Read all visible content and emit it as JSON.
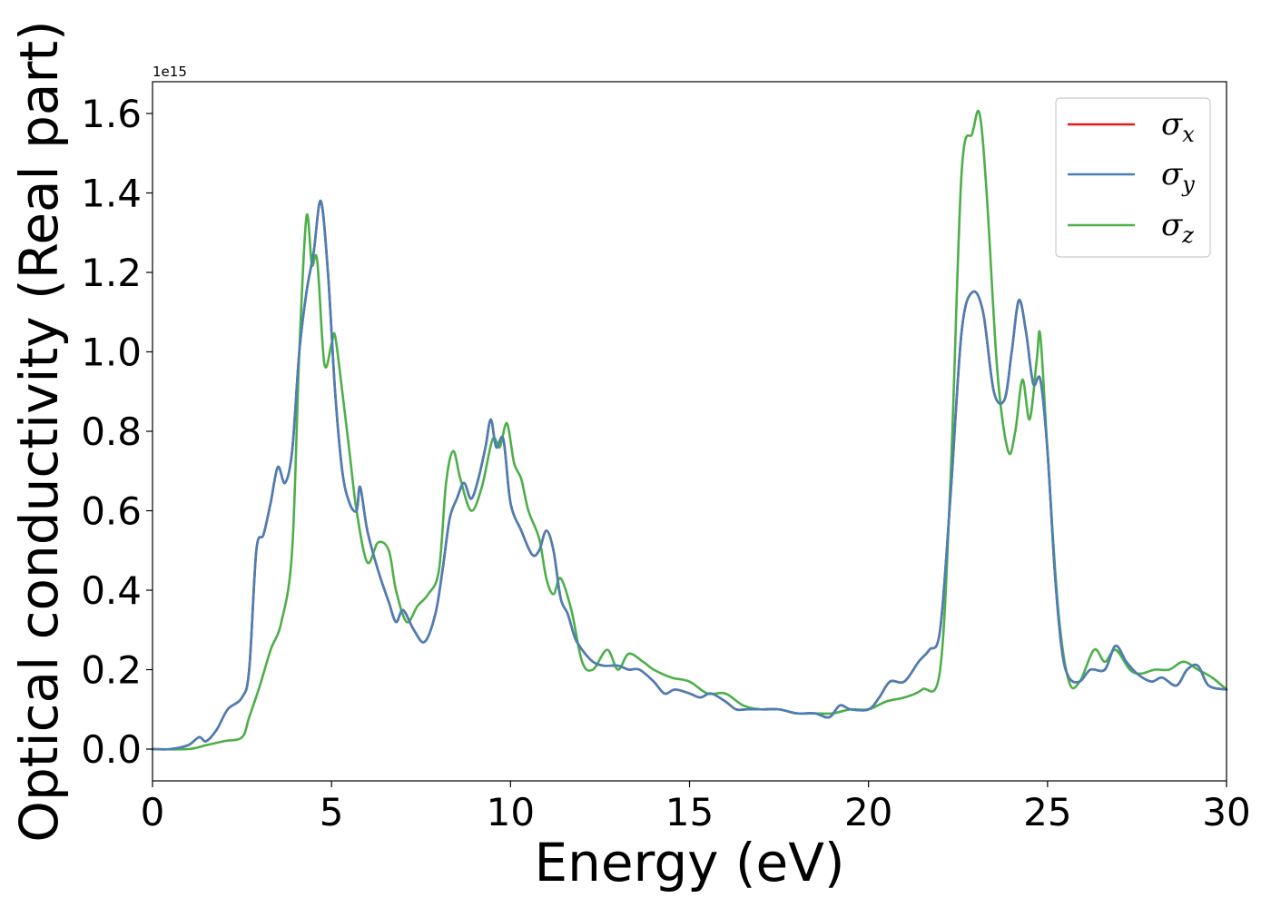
{
  "chart_data": {
    "type": "line",
    "title": "",
    "xlabel": "Energy (eV)",
    "ylabel": "Optical conductivity (Real part)",
    "y_offset_label": "1e15",
    "xlim": [
      0,
      30
    ],
    "ylim": [
      -0.08,
      1.68
    ],
    "x_ticks": [
      0,
      5,
      10,
      15,
      20,
      25,
      30
    ],
    "y_ticks": [
      0.0,
      0.2,
      0.4,
      0.6,
      0.8,
      1.0,
      1.2,
      1.4,
      1.6
    ],
    "x_tick_labels": [
      "0",
      "5",
      "10",
      "15",
      "20",
      "25",
      "30"
    ],
    "y_tick_labels": [
      "0.0",
      "0.2",
      "0.4",
      "0.6",
      "0.8",
      "1.0",
      "1.2",
      "1.4",
      "1.6"
    ],
    "grid": false,
    "legend_position": "top-right",
    "series": [
      {
        "name": "σx",
        "symbol": "σ",
        "subscript": "x",
        "color": "#e41a1c",
        "points": [
          [
            0,
            0
          ],
          [
            0.5,
            0.0
          ],
          [
            1.0,
            0.01
          ],
          [
            1.3,
            0.03
          ],
          [
            1.5,
            0.02
          ],
          [
            1.8,
            0.05
          ],
          [
            2.1,
            0.1
          ],
          [
            2.5,
            0.13
          ],
          [
            2.7,
            0.2
          ],
          [
            2.9,
            0.5
          ],
          [
            3.1,
            0.54
          ],
          [
            3.3,
            0.62
          ],
          [
            3.5,
            0.71
          ],
          [
            3.7,
            0.67
          ],
          [
            3.9,
            0.75
          ],
          [
            4.1,
            1.0
          ],
          [
            4.3,
            1.15
          ],
          [
            4.5,
            1.25
          ],
          [
            4.7,
            1.38
          ],
          [
            4.9,
            1.2
          ],
          [
            5.1,
            0.9
          ],
          [
            5.3,
            0.7
          ],
          [
            5.5,
            0.62
          ],
          [
            5.7,
            0.6
          ],
          [
            5.8,
            0.66
          ],
          [
            6.0,
            0.55
          ],
          [
            6.3,
            0.45
          ],
          [
            6.6,
            0.37
          ],
          [
            6.8,
            0.32
          ],
          [
            7.0,
            0.35
          ],
          [
            7.3,
            0.3
          ],
          [
            7.6,
            0.27
          ],
          [
            7.9,
            0.34
          ],
          [
            8.1,
            0.45
          ],
          [
            8.3,
            0.58
          ],
          [
            8.5,
            0.63
          ],
          [
            8.7,
            0.67
          ],
          [
            8.9,
            0.63
          ],
          [
            9.1,
            0.68
          ],
          [
            9.3,
            0.76
          ],
          [
            9.45,
            0.83
          ],
          [
            9.6,
            0.76
          ],
          [
            9.8,
            0.78
          ],
          [
            10.0,
            0.62
          ],
          [
            10.3,
            0.55
          ],
          [
            10.6,
            0.49
          ],
          [
            10.8,
            0.5
          ],
          [
            11.0,
            0.55
          ],
          [
            11.2,
            0.5
          ],
          [
            11.4,
            0.38
          ],
          [
            11.6,
            0.34
          ],
          [
            11.8,
            0.28
          ],
          [
            12.0,
            0.25
          ],
          [
            12.3,
            0.22
          ],
          [
            12.6,
            0.21
          ],
          [
            13.0,
            0.21
          ],
          [
            13.3,
            0.2
          ],
          [
            13.6,
            0.2
          ],
          [
            14.0,
            0.17
          ],
          [
            14.3,
            0.14
          ],
          [
            14.6,
            0.15
          ],
          [
            15.0,
            0.14
          ],
          [
            15.3,
            0.13
          ],
          [
            15.6,
            0.14
          ],
          [
            16.0,
            0.12
          ],
          [
            16.3,
            0.1
          ],
          [
            16.6,
            0.1
          ],
          [
            17.0,
            0.1
          ],
          [
            17.5,
            0.1
          ],
          [
            18.0,
            0.09
          ],
          [
            18.5,
            0.09
          ],
          [
            18.9,
            0.08
          ],
          [
            19.2,
            0.11
          ],
          [
            19.5,
            0.1
          ],
          [
            20.0,
            0.1
          ],
          [
            20.3,
            0.13
          ],
          [
            20.6,
            0.17
          ],
          [
            21.0,
            0.17
          ],
          [
            21.4,
            0.22
          ],
          [
            21.7,
            0.25
          ],
          [
            22.0,
            0.3
          ],
          [
            22.3,
            0.65
          ],
          [
            22.6,
            1.05
          ],
          [
            22.9,
            1.15
          ],
          [
            23.2,
            1.1
          ],
          [
            23.5,
            0.9
          ],
          [
            23.8,
            0.88
          ],
          [
            24.0,
            1.0
          ],
          [
            24.2,
            1.13
          ],
          [
            24.4,
            1.05
          ],
          [
            24.6,
            0.92
          ],
          [
            24.8,
            0.93
          ],
          [
            25.0,
            0.75
          ],
          [
            25.2,
            0.45
          ],
          [
            25.4,
            0.25
          ],
          [
            25.6,
            0.18
          ],
          [
            25.9,
            0.17
          ],
          [
            26.2,
            0.2
          ],
          [
            26.6,
            0.2
          ],
          [
            26.9,
            0.26
          ],
          [
            27.2,
            0.22
          ],
          [
            27.5,
            0.19
          ],
          [
            27.9,
            0.17
          ],
          [
            28.2,
            0.18
          ],
          [
            28.6,
            0.16
          ],
          [
            28.9,
            0.2
          ],
          [
            29.2,
            0.21
          ],
          [
            29.5,
            0.16
          ],
          [
            30.0,
            0.15
          ]
        ]
      },
      {
        "name": "σy",
        "symbol": "σ",
        "subscript": "y",
        "color": "#4a7fb5",
        "points": [
          [
            0,
            0
          ],
          [
            0.5,
            0.0
          ],
          [
            1.0,
            0.01
          ],
          [
            1.3,
            0.03
          ],
          [
            1.5,
            0.02
          ],
          [
            1.8,
            0.05
          ],
          [
            2.1,
            0.1
          ],
          [
            2.5,
            0.13
          ],
          [
            2.7,
            0.2
          ],
          [
            2.9,
            0.5
          ],
          [
            3.1,
            0.54
          ],
          [
            3.3,
            0.62
          ],
          [
            3.5,
            0.71
          ],
          [
            3.7,
            0.67
          ],
          [
            3.9,
            0.75
          ],
          [
            4.1,
            1.0
          ],
          [
            4.3,
            1.15
          ],
          [
            4.5,
            1.25
          ],
          [
            4.7,
            1.38
          ],
          [
            4.9,
            1.2
          ],
          [
            5.1,
            0.9
          ],
          [
            5.3,
            0.7
          ],
          [
            5.5,
            0.62
          ],
          [
            5.7,
            0.6
          ],
          [
            5.8,
            0.66
          ],
          [
            6.0,
            0.55
          ],
          [
            6.3,
            0.45
          ],
          [
            6.6,
            0.37
          ],
          [
            6.8,
            0.32
          ],
          [
            7.0,
            0.35
          ],
          [
            7.3,
            0.3
          ],
          [
            7.6,
            0.27
          ],
          [
            7.9,
            0.34
          ],
          [
            8.1,
            0.45
          ],
          [
            8.3,
            0.58
          ],
          [
            8.5,
            0.63
          ],
          [
            8.7,
            0.67
          ],
          [
            8.9,
            0.63
          ],
          [
            9.1,
            0.68
          ],
          [
            9.3,
            0.76
          ],
          [
            9.45,
            0.83
          ],
          [
            9.6,
            0.76
          ],
          [
            9.8,
            0.78
          ],
          [
            10.0,
            0.62
          ],
          [
            10.3,
            0.55
          ],
          [
            10.6,
            0.49
          ],
          [
            10.8,
            0.5
          ],
          [
            11.0,
            0.55
          ],
          [
            11.2,
            0.5
          ],
          [
            11.4,
            0.38
          ],
          [
            11.6,
            0.34
          ],
          [
            11.8,
            0.28
          ],
          [
            12.0,
            0.25
          ],
          [
            12.3,
            0.22
          ],
          [
            12.6,
            0.21
          ],
          [
            13.0,
            0.21
          ],
          [
            13.3,
            0.2
          ],
          [
            13.6,
            0.2
          ],
          [
            14.0,
            0.17
          ],
          [
            14.3,
            0.14
          ],
          [
            14.6,
            0.15
          ],
          [
            15.0,
            0.14
          ],
          [
            15.3,
            0.13
          ],
          [
            15.6,
            0.14
          ],
          [
            16.0,
            0.12
          ],
          [
            16.3,
            0.1
          ],
          [
            16.6,
            0.1
          ],
          [
            17.0,
            0.1
          ],
          [
            17.5,
            0.1
          ],
          [
            18.0,
            0.09
          ],
          [
            18.5,
            0.09
          ],
          [
            18.9,
            0.08
          ],
          [
            19.2,
            0.11
          ],
          [
            19.5,
            0.1
          ],
          [
            20.0,
            0.1
          ],
          [
            20.3,
            0.13
          ],
          [
            20.6,
            0.17
          ],
          [
            21.0,
            0.17
          ],
          [
            21.4,
            0.22
          ],
          [
            21.7,
            0.25
          ],
          [
            22.0,
            0.3
          ],
          [
            22.3,
            0.65
          ],
          [
            22.6,
            1.05
          ],
          [
            22.9,
            1.15
          ],
          [
            23.2,
            1.1
          ],
          [
            23.5,
            0.9
          ],
          [
            23.8,
            0.88
          ],
          [
            24.0,
            1.0
          ],
          [
            24.2,
            1.13
          ],
          [
            24.4,
            1.05
          ],
          [
            24.6,
            0.92
          ],
          [
            24.8,
            0.93
          ],
          [
            25.0,
            0.75
          ],
          [
            25.2,
            0.45
          ],
          [
            25.4,
            0.25
          ],
          [
            25.6,
            0.18
          ],
          [
            25.9,
            0.17
          ],
          [
            26.2,
            0.2
          ],
          [
            26.6,
            0.2
          ],
          [
            26.9,
            0.26
          ],
          [
            27.2,
            0.22
          ],
          [
            27.5,
            0.19
          ],
          [
            27.9,
            0.17
          ],
          [
            28.2,
            0.18
          ],
          [
            28.6,
            0.16
          ],
          [
            28.9,
            0.2
          ],
          [
            29.2,
            0.21
          ],
          [
            29.5,
            0.16
          ],
          [
            30.0,
            0.15
          ]
        ]
      },
      {
        "name": "σz",
        "symbol": "σ",
        "subscript": "z",
        "color": "#4daf4a",
        "points": [
          [
            0,
            0
          ],
          [
            1.0,
            0.0
          ],
          [
            1.5,
            0.01
          ],
          [
            2.0,
            0.02
          ],
          [
            2.5,
            0.03
          ],
          [
            2.7,
            0.08
          ],
          [
            3.0,
            0.16
          ],
          [
            3.3,
            0.25
          ],
          [
            3.6,
            0.32
          ],
          [
            3.9,
            0.5
          ],
          [
            4.1,
            1.0
          ],
          [
            4.3,
            1.34
          ],
          [
            4.45,
            1.22
          ],
          [
            4.6,
            1.23
          ],
          [
            4.8,
            0.97
          ],
          [
            5.0,
            1.02
          ],
          [
            5.1,
            1.04
          ],
          [
            5.3,
            0.9
          ],
          [
            5.5,
            0.75
          ],
          [
            5.7,
            0.6
          ],
          [
            6.0,
            0.47
          ],
          [
            6.3,
            0.52
          ],
          [
            6.6,
            0.5
          ],
          [
            6.8,
            0.4
          ],
          [
            7.1,
            0.32
          ],
          [
            7.4,
            0.36
          ],
          [
            7.7,
            0.39
          ],
          [
            8.0,
            0.45
          ],
          [
            8.2,
            0.67
          ],
          [
            8.4,
            0.75
          ],
          [
            8.6,
            0.68
          ],
          [
            8.9,
            0.6
          ],
          [
            9.2,
            0.66
          ],
          [
            9.5,
            0.78
          ],
          [
            9.7,
            0.76
          ],
          [
            9.9,
            0.82
          ],
          [
            10.1,
            0.72
          ],
          [
            10.3,
            0.68
          ],
          [
            10.5,
            0.6
          ],
          [
            10.8,
            0.53
          ],
          [
            11.0,
            0.43
          ],
          [
            11.2,
            0.39
          ],
          [
            11.4,
            0.43
          ],
          [
            11.7,
            0.35
          ],
          [
            12.0,
            0.22
          ],
          [
            12.3,
            0.2
          ],
          [
            12.7,
            0.25
          ],
          [
            13.0,
            0.2
          ],
          [
            13.3,
            0.24
          ],
          [
            13.7,
            0.22
          ],
          [
            14.0,
            0.2
          ],
          [
            14.5,
            0.18
          ],
          [
            15.0,
            0.17
          ],
          [
            15.5,
            0.14
          ],
          [
            16.0,
            0.14
          ],
          [
            16.5,
            0.11
          ],
          [
            17.0,
            0.1
          ],
          [
            17.5,
            0.1
          ],
          [
            18.0,
            0.09
          ],
          [
            18.5,
            0.09
          ],
          [
            19.0,
            0.09
          ],
          [
            19.5,
            0.1
          ],
          [
            20.0,
            0.1
          ],
          [
            20.5,
            0.12
          ],
          [
            21.0,
            0.13
          ],
          [
            21.5,
            0.15
          ],
          [
            22.0,
            0.2
          ],
          [
            22.3,
            0.7
          ],
          [
            22.6,
            1.45
          ],
          [
            22.9,
            1.55
          ],
          [
            23.1,
            1.6
          ],
          [
            23.3,
            1.4
          ],
          [
            23.6,
            0.95
          ],
          [
            23.9,
            0.75
          ],
          [
            24.1,
            0.8
          ],
          [
            24.3,
            0.93
          ],
          [
            24.5,
            0.83
          ],
          [
            24.7,
            0.98
          ],
          [
            24.8,
            1.04
          ],
          [
            25.0,
            0.75
          ],
          [
            25.3,
            0.35
          ],
          [
            25.6,
            0.17
          ],
          [
            25.9,
            0.17
          ],
          [
            26.3,
            0.25
          ],
          [
            26.6,
            0.22
          ],
          [
            26.9,
            0.25
          ],
          [
            27.3,
            0.2
          ],
          [
            27.6,
            0.19
          ],
          [
            28.0,
            0.2
          ],
          [
            28.4,
            0.2
          ],
          [
            28.8,
            0.22
          ],
          [
            29.2,
            0.2
          ],
          [
            29.6,
            0.18
          ],
          [
            30.0,
            0.15
          ]
        ]
      }
    ]
  }
}
